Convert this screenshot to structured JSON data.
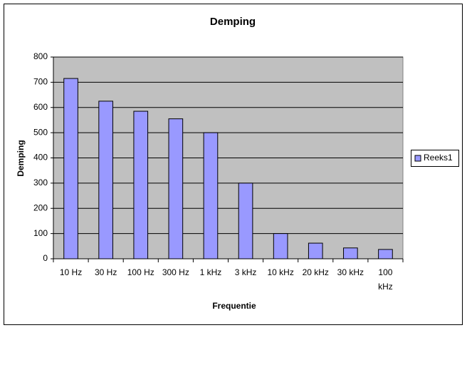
{
  "chart_data": {
    "type": "bar",
    "title": "Demping",
    "x_label": "Frequentie",
    "y_label": "Demping",
    "categories": [
      "10 Hz",
      "30 Hz",
      "100 Hz",
      "300 Hz",
      "1 kHz",
      "3 kHz",
      "10 kHz",
      "20 kHz",
      "30 kHz",
      "100 kHz"
    ],
    "series": [
      {
        "name": "Reeks1",
        "color": "#9999ff",
        "values": [
          715,
          625,
          585,
          555,
          500,
          300,
          100,
          62,
          43,
          37
        ]
      }
    ],
    "ylim": [
      0,
      800
    ],
    "yticks": [
      0,
      100,
      200,
      300,
      400,
      500,
      600,
      700,
      800
    ],
    "grid": true,
    "legend": "right"
  }
}
